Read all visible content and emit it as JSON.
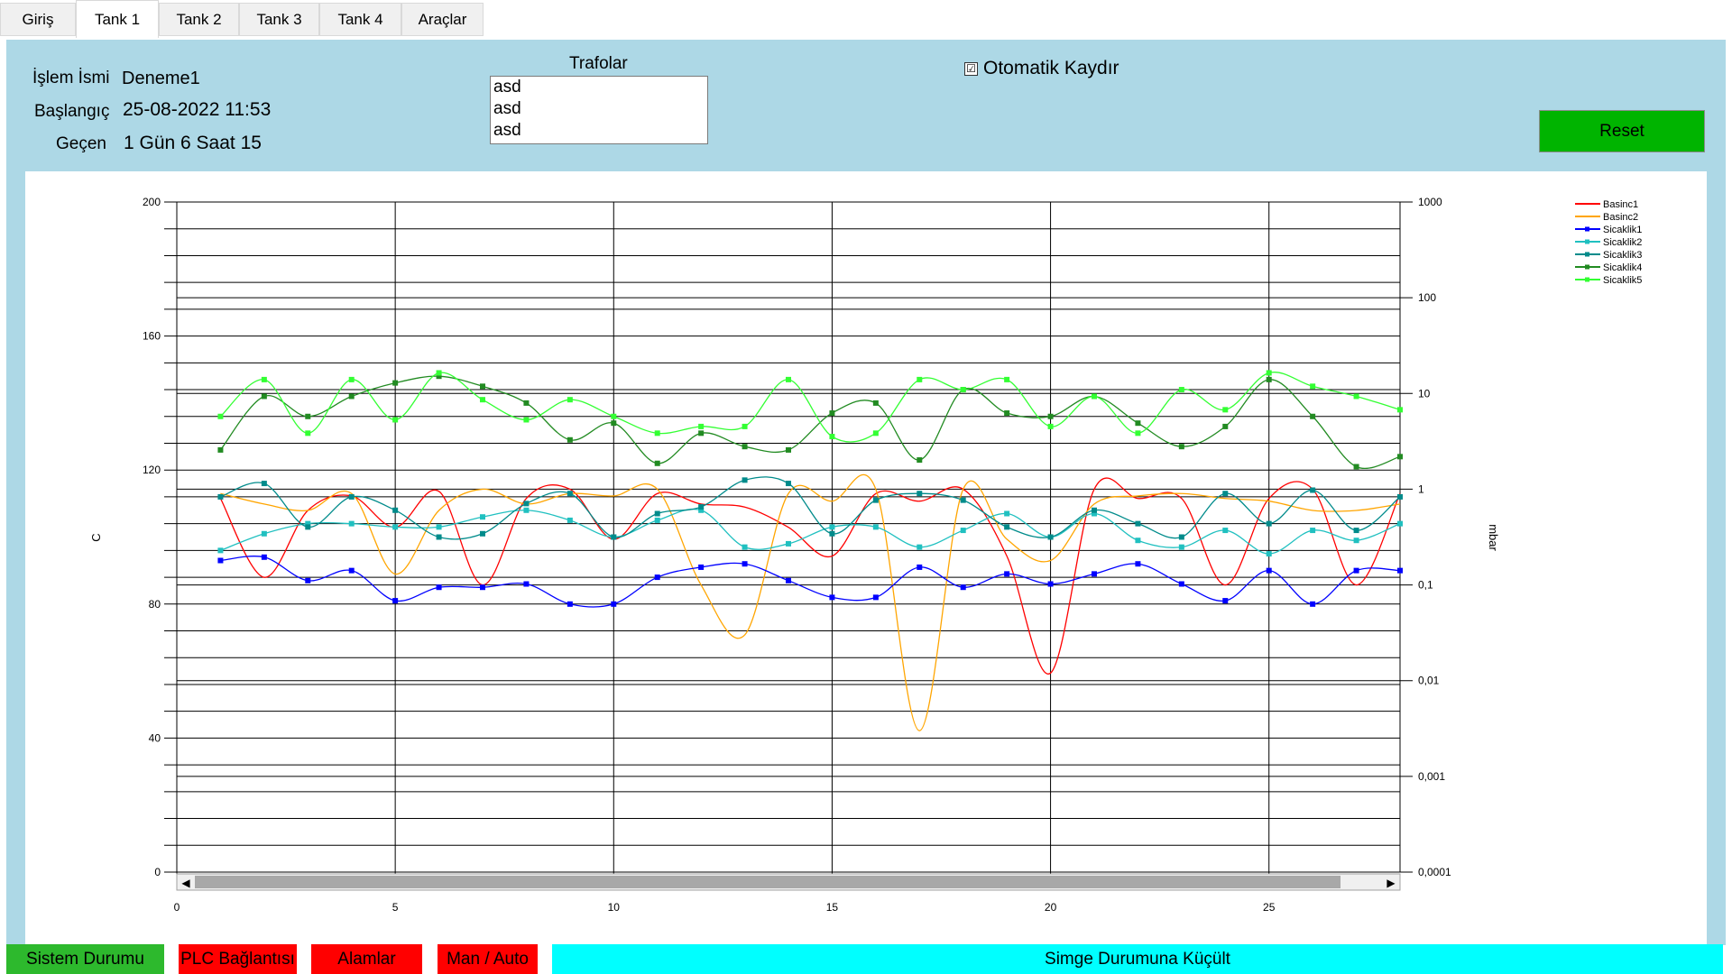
{
  "tabs": [
    "Giriş",
    "Tank 1",
    "Tank 2",
    "Tank 3",
    "Tank 4",
    "Araçlar"
  ],
  "active_tab": "Tank 1",
  "info": {
    "process_name_label": "İşlem İsmi",
    "process_name_value": "Deneme1",
    "start_label": "Başlangıç",
    "start_value": "25-08-2022 11:53",
    "elapsed_label": "Geçen",
    "elapsed_value": "1 Gün 6 Saat 15"
  },
  "trafolar": {
    "title": "Trafolar",
    "items": [
      "asd",
      "asd",
      "asd"
    ]
  },
  "auto_scroll": {
    "label": "Otomatik Kaydır",
    "checked": true,
    "check_glyph": "☑"
  },
  "reset_label": "Reset",
  "colors": {
    "panel": "#add8e6",
    "reset": "#00b400",
    "status_ok": "#2db92d",
    "status_alarm": "#ff0000",
    "minimize": "#00ffff"
  },
  "status_bar": {
    "system": "Sistem Durumu",
    "plc": "PLC Bağlantısı",
    "alarms": "Alamlar",
    "man_auto": "Man / Auto",
    "minimize": "Simge Durumuna Küçült"
  },
  "scrollbar": {
    "left_arrow": "◀",
    "right_arrow": "▶"
  },
  "chart_data": {
    "type": "line",
    "ylabel": "C",
    "y2label": "mbar",
    "ylim": [
      0,
      200
    ],
    "yticks": [
      0,
      40,
      80,
      120,
      160,
      200
    ],
    "y2ticks": [
      "0,0001",
      "0,001",
      "0,01",
      "0,1",
      "1",
      "10",
      "100",
      "1000"
    ],
    "xlim": [
      0,
      28
    ],
    "xticks": [
      0,
      5,
      10,
      15,
      20,
      25
    ],
    "legend_position": "top-right",
    "series": [
      {
        "name": "Basinc1",
        "color": "#ff0000",
        "axis": "right",
        "markers": false,
        "x": [
          1,
          2,
          3,
          4,
          5,
          6,
          7,
          8,
          9,
          10,
          11,
          12,
          13,
          14,
          15,
          16,
          17,
          18,
          19,
          20,
          21,
          22,
          23,
          24,
          25,
          26,
          27,
          28
        ],
        "y": [
          0.8,
          0.12,
          0.6,
          0.85,
          0.4,
          0.95,
          0.1,
          0.8,
          1,
          0.3,
          0.9,
          0.7,
          0.65,
          0.4,
          0.2,
          0.9,
          0.75,
          1,
          0.2,
          0.012,
          1,
          0.8,
          0.8,
          0.1,
          0.8,
          1,
          0.1,
          0.9
        ]
      },
      {
        "name": "Basinc2",
        "color": "#ffa500",
        "axis": "right",
        "markers": false,
        "x": [
          1,
          2,
          3,
          4,
          5,
          6,
          7,
          8,
          9,
          10,
          11,
          12,
          13,
          14,
          15,
          16,
          17,
          18,
          19,
          20,
          21,
          22,
          23,
          24,
          25,
          26,
          27,
          28
        ],
        "y": [
          0.9,
          0.7,
          0.6,
          0.9,
          0.13,
          0.6,
          1,
          0.7,
          0.9,
          0.85,
          1,
          0.1,
          0.03,
          0.9,
          0.75,
          1,
          0.003,
          1,
          0.3,
          0.18,
          0.7,
          0.85,
          0.9,
          0.8,
          0.75,
          0.6,
          0.6,
          0.7
        ]
      },
      {
        "name": "Sicaklik1",
        "color": "#0000ff",
        "axis": "left",
        "markers": true,
        "x": [
          1,
          2,
          3,
          4,
          5,
          6,
          7,
          8,
          9,
          10,
          11,
          12,
          13,
          14,
          15,
          16,
          17,
          18,
          19,
          20,
          21,
          22,
          23,
          24,
          25,
          26,
          27,
          28
        ],
        "y": [
          93,
          94,
          87,
          90,
          81,
          85,
          85,
          86,
          80,
          80,
          88,
          91,
          92,
          87,
          82,
          82,
          91,
          85,
          89,
          86,
          89,
          92,
          86,
          81,
          90,
          80,
          90,
          90
        ]
      },
      {
        "name": "Sicaklik2",
        "color": "#20c0c0",
        "axis": "left",
        "markers": true,
        "x": [
          1,
          2,
          3,
          4,
          5,
          6,
          7,
          8,
          9,
          10,
          11,
          12,
          13,
          14,
          15,
          16,
          17,
          18,
          19,
          20,
          21,
          22,
          23,
          24,
          25,
          26,
          27,
          28
        ],
        "y": [
          96,
          101,
          104,
          104,
          103,
          103,
          106,
          108,
          105,
          100,
          105,
          108,
          97,
          98,
          103,
          103,
          97,
          102,
          107,
          100,
          107,
          99,
          97,
          102,
          95,
          102,
          99,
          104
        ]
      },
      {
        "name": "Sicaklik3",
        "color": "#008b8b",
        "axis": "left",
        "markers": true,
        "x": [
          1,
          2,
          3,
          4,
          5,
          6,
          7,
          8,
          9,
          10,
          11,
          12,
          13,
          14,
          15,
          16,
          17,
          18,
          19,
          20,
          21,
          22,
          23,
          24,
          25,
          26,
          27,
          28
        ],
        "y": [
          112,
          116,
          103,
          112,
          108,
          100,
          101,
          110,
          113,
          100,
          107,
          109,
          117,
          116,
          101,
          111,
          113,
          111,
          103,
          100,
          108,
          104,
          100,
          113,
          104,
          114,
          102,
          112
        ]
      },
      {
        "name": "Sicaklik4",
        "color": "#228b22",
        "axis": "left",
        "markers": true,
        "x": [
          1,
          2,
          3,
          4,
          5,
          6,
          7,
          8,
          9,
          10,
          11,
          12,
          13,
          14,
          15,
          16,
          17,
          18,
          19,
          20,
          21,
          22,
          23,
          24,
          25,
          26,
          27,
          28
        ],
        "y": [
          126,
          142,
          136,
          142,
          146,
          148,
          145,
          140,
          129,
          134,
          122,
          131,
          127,
          126,
          137,
          140,
          123,
          144,
          137,
          136,
          142,
          134,
          127,
          133,
          147,
          136,
          121,
          124
        ]
      },
      {
        "name": "Sicaklik5",
        "color": "#33ff33",
        "axis": "left",
        "markers": true,
        "x": [
          1,
          2,
          3,
          4,
          5,
          6,
          7,
          8,
          9,
          10,
          11,
          12,
          13,
          14,
          15,
          16,
          17,
          18,
          19,
          20,
          21,
          22,
          23,
          24,
          25,
          26,
          27,
          28
        ],
        "y": [
          136,
          147,
          131,
          147,
          135,
          149,
          141,
          135,
          141,
          136,
          131,
          133,
          133,
          147,
          130,
          131,
          147,
          144,
          147,
          133,
          142,
          131,
          144,
          138,
          149,
          145,
          142,
          138
        ]
      }
    ]
  }
}
